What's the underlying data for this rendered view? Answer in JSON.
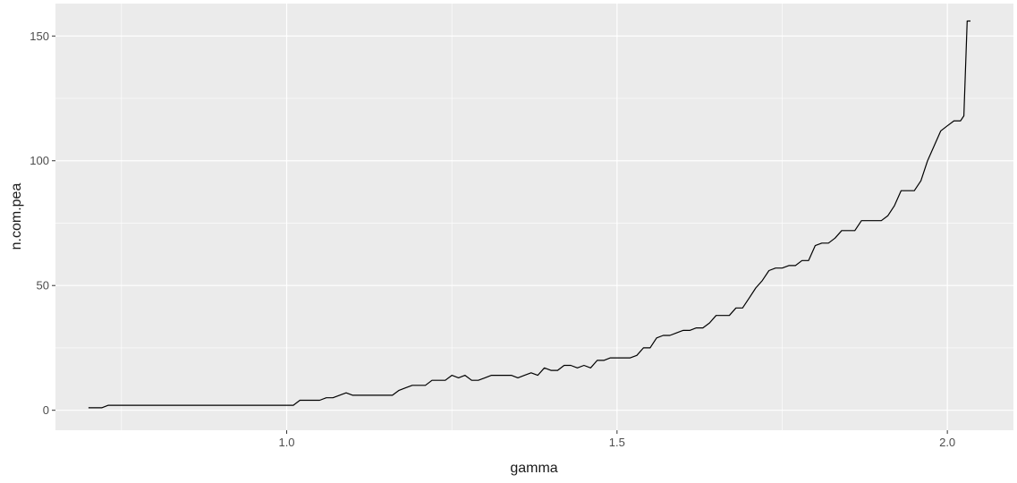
{
  "chart_data": {
    "type": "line",
    "xlabel": "gamma",
    "ylabel": "n.com.pea",
    "xlim": [
      0.65,
      2.1
    ],
    "ylim": [
      -8,
      163
    ],
    "x_ticks": [
      1.0,
      1.5,
      2.0
    ],
    "x_tick_labels": [
      "1.0",
      "1.5",
      "2.0"
    ],
    "y_ticks": [
      0,
      50,
      100,
      150
    ],
    "y_tick_labels": [
      "0",
      "50",
      "100",
      "150"
    ],
    "grid": true,
    "background": "#ebebeb",
    "grid_color": "#ffffff",
    "line_color": "#000000",
    "series": [
      {
        "x": [
          0.7,
          0.71,
          0.72,
          0.73,
          0.74,
          0.8,
          0.9,
          1.0,
          1.01,
          1.02,
          1.04,
          1.05,
          1.06,
          1.07,
          1.08,
          1.09,
          1.1,
          1.12,
          1.14,
          1.16,
          1.17,
          1.18,
          1.19,
          1.21,
          1.22,
          1.24,
          1.25,
          1.26,
          1.27,
          1.28,
          1.29,
          1.3,
          1.31,
          1.32,
          1.34,
          1.35,
          1.36,
          1.37,
          1.38,
          1.39,
          1.4,
          1.41,
          1.42,
          1.43,
          1.44,
          1.45,
          1.46,
          1.47,
          1.48,
          1.49,
          1.5,
          1.51,
          1.52,
          1.53,
          1.54,
          1.55,
          1.56,
          1.57,
          1.58,
          1.59,
          1.6,
          1.61,
          1.62,
          1.63,
          1.64,
          1.65,
          1.66,
          1.67,
          1.68,
          1.69,
          1.7,
          1.71,
          1.72,
          1.73,
          1.74,
          1.75,
          1.76,
          1.77,
          1.78,
          1.79,
          1.8,
          1.81,
          1.82,
          1.83,
          1.84,
          1.85,
          1.86,
          1.87,
          1.88,
          1.89,
          1.9,
          1.91,
          1.92,
          1.93,
          1.94,
          1.95,
          1.96,
          1.97,
          1.98,
          1.99,
          2.0,
          2.01,
          2.02,
          2.025,
          2.03,
          2.035
        ],
        "y": [
          1,
          1,
          1,
          2,
          2,
          2,
          2,
          2,
          2,
          4,
          4,
          4,
          5,
          5,
          6,
          7,
          6,
          6,
          6,
          6,
          8,
          9,
          10,
          10,
          12,
          12,
          14,
          13,
          14,
          12,
          12,
          13,
          14,
          14,
          14,
          13,
          14,
          15,
          14,
          17,
          16,
          16,
          18,
          18,
          17,
          18,
          17,
          20,
          20,
          21,
          21,
          21,
          21,
          22,
          25,
          25,
          29,
          30,
          30,
          31,
          32,
          32,
          33,
          33,
          35,
          38,
          38,
          38,
          41,
          41,
          45,
          49,
          52,
          56,
          57,
          57,
          58,
          58,
          60,
          60,
          66,
          67,
          67,
          69,
          72,
          72,
          72,
          76,
          76,
          76,
          76,
          78,
          82,
          88,
          88,
          88,
          92,
          100,
          106,
          112,
          114,
          116,
          116,
          118,
          156,
          156
        ]
      }
    ]
  }
}
